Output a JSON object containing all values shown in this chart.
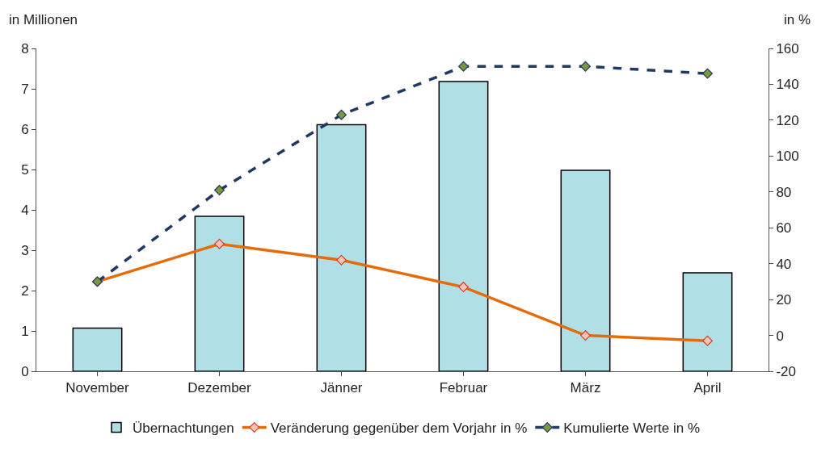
{
  "chart_data": {
    "type": "bar",
    "ylabel": "in Millionen",
    "y2label": "in %",
    "categories": [
      "November",
      "Dezember",
      "Jänner",
      "Februar",
      "März",
      "April"
    ],
    "series": [
      {
        "name": "Übernachtungen",
        "color": "#b0dfe5",
        "values": [
          1.07,
          3.84,
          6.11,
          7.18,
          4.98,
          2.44
        ]
      },
      {
        "name": "Veränderung gegenüber dem Vorjahr in %",
        "type": "line",
        "axis": "y2",
        "color": "#e46c0a",
        "marker": "diamond",
        "line_style": "solid",
        "values": [
          30,
          51,
          42,
          27,
          0,
          -3
        ]
      },
      {
        "name": "Kumulierte Werte in %",
        "type": "line",
        "axis": "y2",
        "color": "#1f3864",
        "marker": "diamond",
        "line_style": "dashed",
        "values": [
          30,
          81,
          123,
          150,
          150,
          146
        ]
      }
    ],
    "ylim": [
      0,
      8
    ],
    "yticks": [
      0,
      1,
      2,
      3,
      4,
      5,
      6,
      7,
      8
    ],
    "y2lim": [
      -20,
      160
    ],
    "y2ticks": [
      -20,
      0,
      20,
      40,
      60,
      80,
      100,
      120,
      140,
      160
    ],
    "legend": "bottom"
  }
}
